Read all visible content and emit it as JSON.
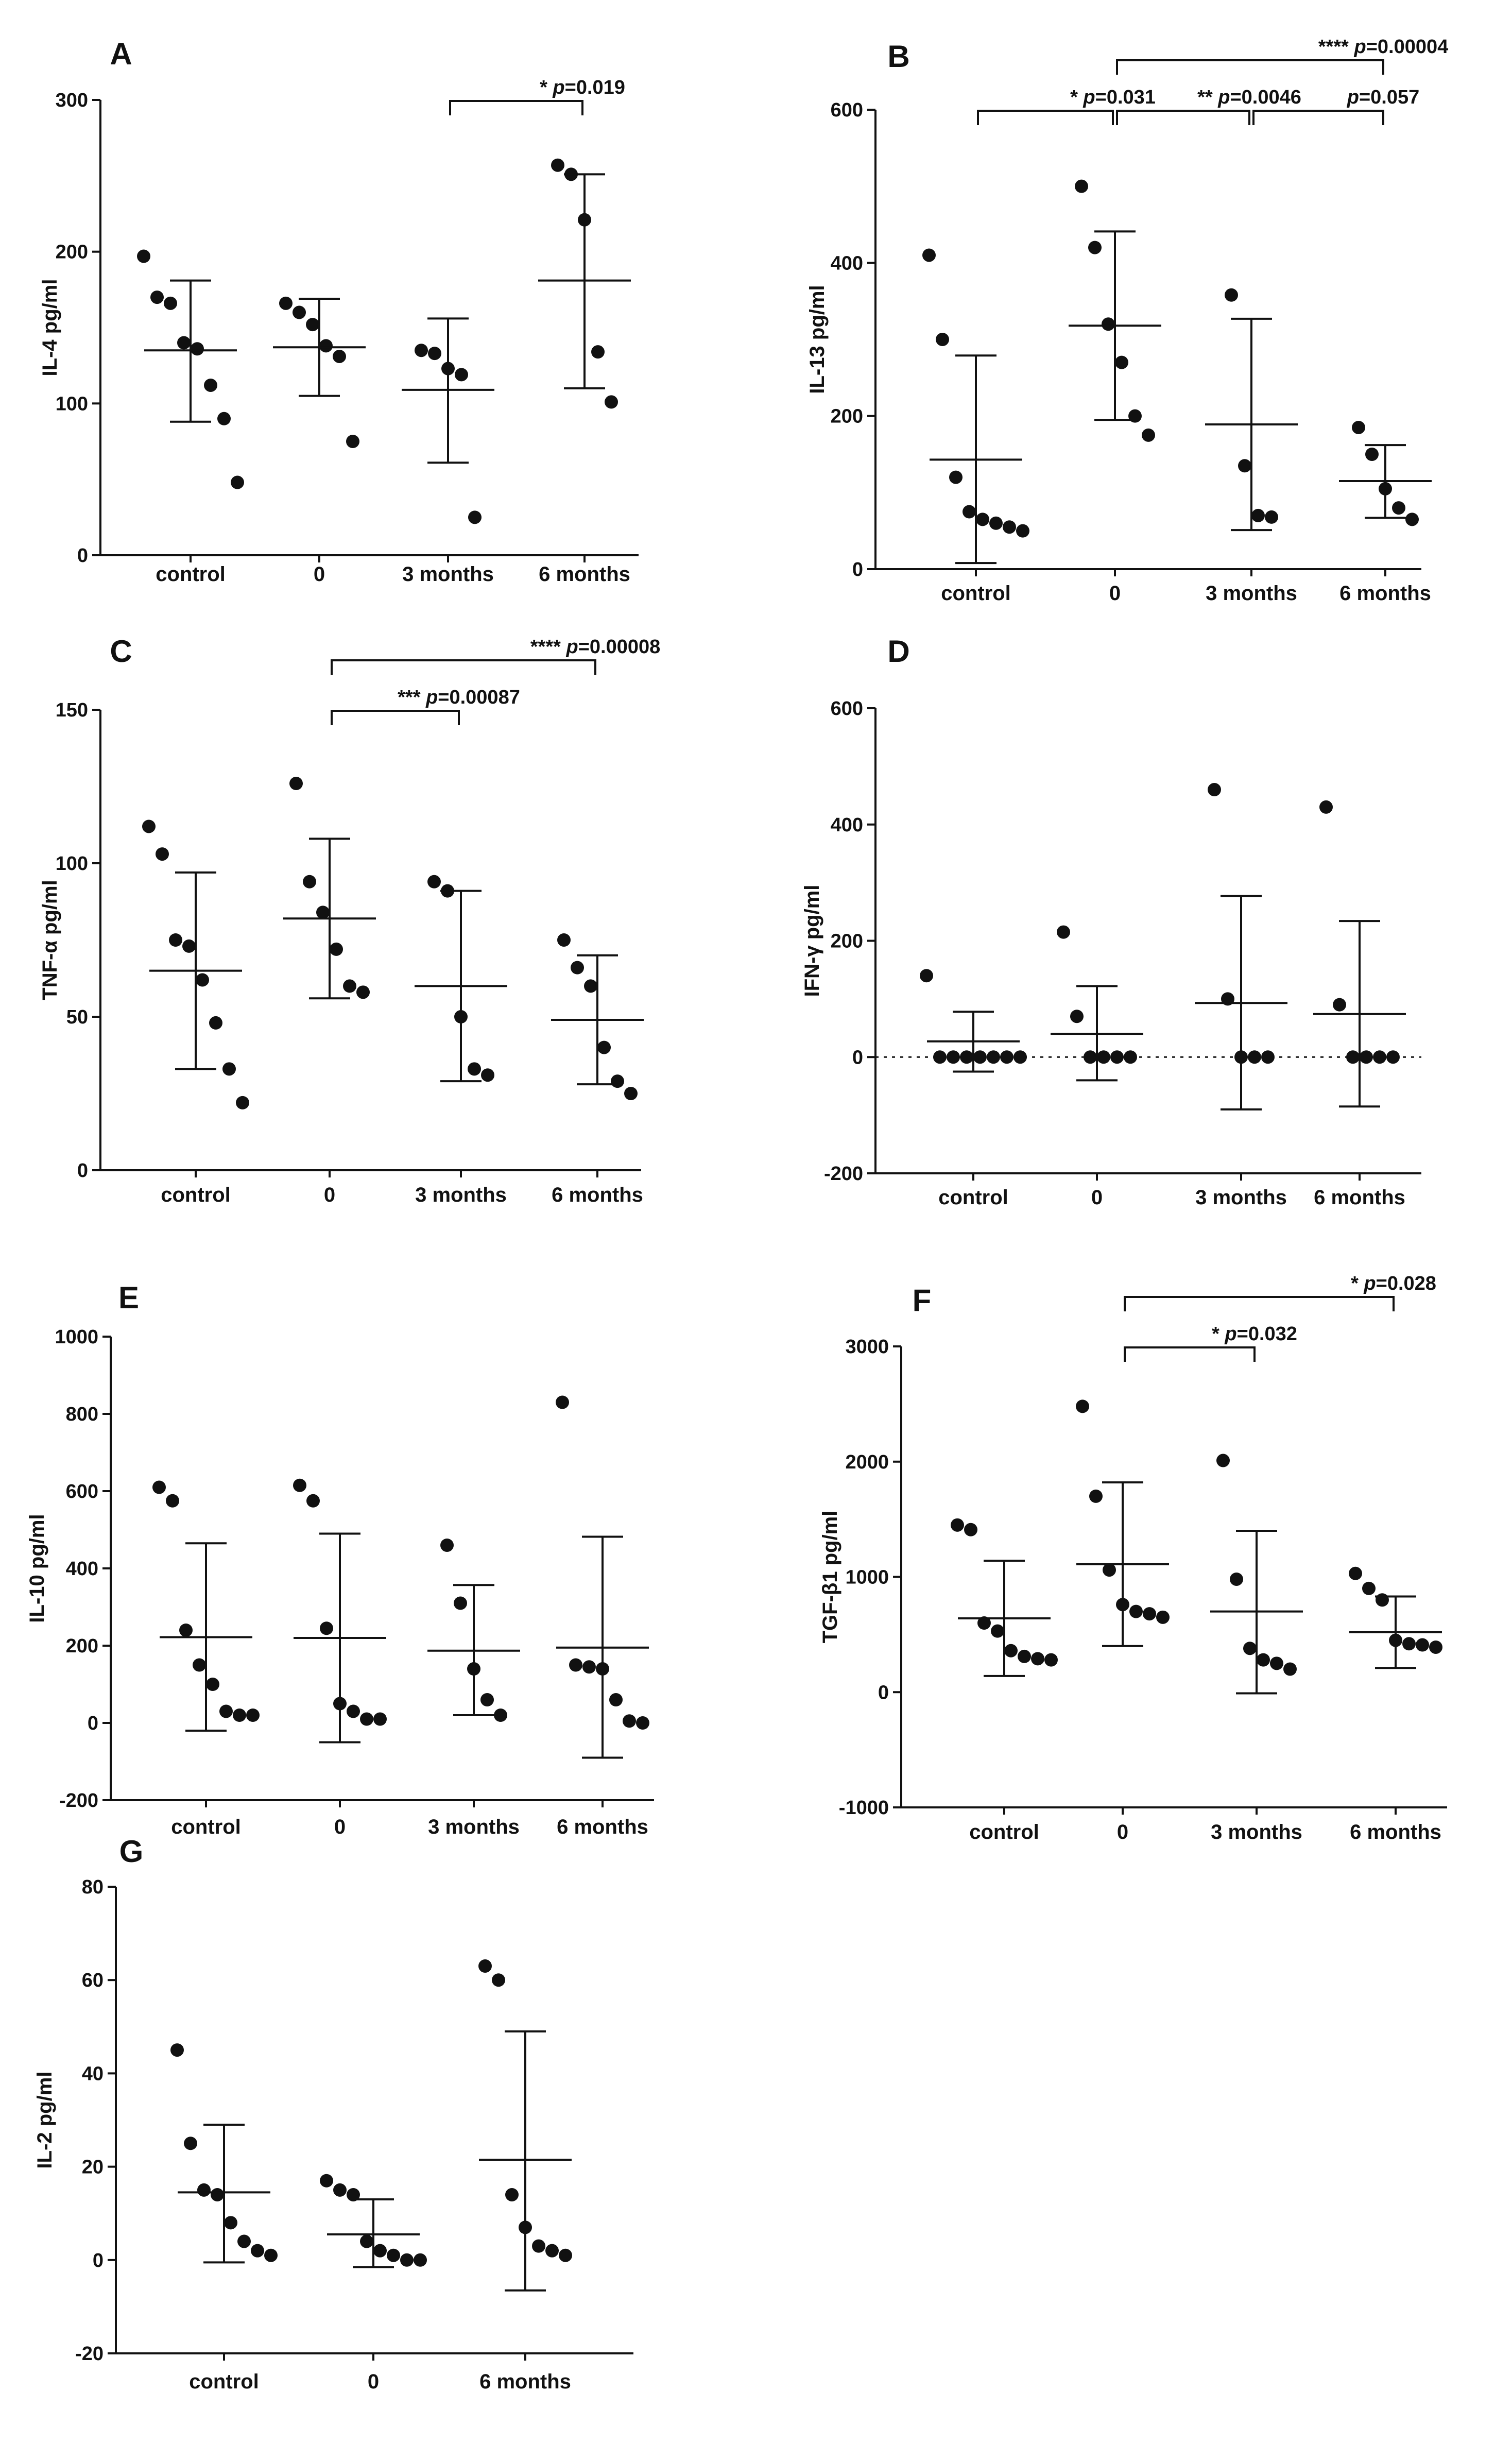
{
  "chart_data": [
    {
      "label": "A",
      "type": "scatter",
      "ylabel": "IL-4 pg/ml",
      "ylim": [
        0,
        300
      ],
      "yticks": [
        0,
        100,
        200,
        300
      ],
      "categories": [
        "control",
        "0",
        "3 months",
        "6 months"
      ],
      "points": [
        [
          197,
          170,
          166,
          140,
          136,
          112,
          90,
          48
        ],
        [
          166,
          160,
          152,
          138,
          131,
          75
        ],
        [
          135,
          133,
          123,
          119,
          25
        ],
        [
          257,
          251,
          221,
          134,
          101
        ]
      ],
      "mean": [
        135,
        137,
        109,
        181
      ],
      "sd_low": [
        88,
        105,
        61,
        110
      ],
      "sd_high": [
        181,
        169,
        156,
        251
      ],
      "zero_line": false,
      "comparisons": [
        {
          "from": 2,
          "to": 3,
          "level": 1,
          "stars": "*",
          "p": "=0.019"
        }
      ]
    },
    {
      "label": "B",
      "type": "scatter",
      "ylabel": "IL-13 pg/ml",
      "ylim": [
        0,
        600
      ],
      "yticks": [
        0,
        200,
        400,
        600
      ],
      "categories": [
        "control",
        "0",
        "3 months",
        "6 months"
      ],
      "points": [
        [
          410,
          300,
          120,
          75,
          65,
          60,
          55,
          50
        ],
        [
          500,
          420,
          320,
          270,
          200,
          175
        ],
        [
          358,
          135,
          70,
          68
        ],
        [
          185,
          150,
          105,
          80,
          65
        ]
      ],
      "mean": [
        143,
        318,
        189,
        115
      ],
      "sd_low": [
        8,
        195,
        51,
        67
      ],
      "sd_high": [
        279,
        441,
        327,
        162
      ],
      "zero_line": false,
      "comparisons": [
        {
          "from": 0,
          "to": 1,
          "level": 1,
          "stars": "*",
          "p": "=0.031"
        },
        {
          "from": 1,
          "to": 2,
          "level": 1,
          "stars": "**",
          "p": "=0.0046"
        },
        {
          "from": 2,
          "to": 3,
          "level": 1,
          "stars": "",
          "p": "=0.057"
        },
        {
          "from": 1,
          "to": 3,
          "level": 2,
          "stars": "****",
          "p": "=0.00004"
        }
      ]
    },
    {
      "label": "C",
      "type": "scatter",
      "ylabel": "TNF-α pg/ml",
      "ylim": [
        0,
        150
      ],
      "yticks": [
        0,
        50,
        100,
        150
      ],
      "categories": [
        "control",
        "0",
        "3 months",
        "6 months"
      ],
      "points": [
        [
          112,
          103,
          75,
          73,
          62,
          48,
          33,
          22
        ],
        [
          126,
          94,
          84,
          72,
          60,
          58
        ],
        [
          94,
          91,
          50,
          33,
          31
        ],
        [
          75,
          66,
          60,
          40,
          29,
          25
        ]
      ],
      "mean": [
        65,
        82,
        60,
        49
      ],
      "sd_low": [
        33,
        56,
        29,
        28
      ],
      "sd_high": [
        97,
        108,
        91,
        70
      ],
      "zero_line": false,
      "comparisons": [
        {
          "from": 1,
          "to": 2,
          "level": 1,
          "stars": "***",
          "p": "=0.00087"
        },
        {
          "from": 1,
          "to": 3,
          "level": 2,
          "stars": "****",
          "p": "=0.00008"
        }
      ]
    },
    {
      "label": "D",
      "type": "scatter",
      "ylabel": "IFN-γ pg/ml",
      "ylim": [
        -200,
        600
      ],
      "yticks": [
        -200,
        0,
        200,
        400,
        600
      ],
      "categories": [
        "control",
        "0",
        "3 months",
        "6 months"
      ],
      "points": [
        [
          140,
          0,
          0,
          0,
          0,
          0,
          0,
          0
        ],
        [
          215,
          70,
          0,
          0,
          0,
          0
        ],
        [
          460,
          100,
          0,
          0,
          0
        ],
        [
          430,
          90,
          0,
          0,
          0,
          0
        ]
      ],
      "mean": [
        27,
        40,
        93,
        74
      ],
      "sd_low": [
        -25,
        -40,
        -90,
        -85
      ],
      "sd_high": [
        78,
        122,
        277,
        234
      ],
      "zero_line": true,
      "comparisons": []
    },
    {
      "label": "E",
      "type": "scatter",
      "ylabel": "IL-10 pg/ml",
      "ylim": [
        -200,
        1000
      ],
      "yticks": [
        -200,
        0,
        200,
        400,
        600,
        800,
        1000
      ],
      "categories": [
        "control",
        "0",
        "3 months",
        "6 months"
      ],
      "points": [
        [
          610,
          575,
          240,
          150,
          100,
          30,
          20,
          20
        ],
        [
          615,
          575,
          245,
          50,
          30,
          10,
          10
        ],
        [
          460,
          310,
          140,
          60,
          20
        ],
        [
          830,
          150,
          145,
          140,
          60,
          5,
          0
        ]
      ],
      "mean": [
        222,
        220,
        187,
        195
      ],
      "sd_low": [
        -20,
        -50,
        20,
        -90
      ],
      "sd_high": [
        465,
        490,
        357,
        482
      ],
      "zero_line": false,
      "comparisons": []
    },
    {
      "label": "F",
      "type": "scatter",
      "ylabel": "TGF-β1 pg/ml",
      "ylim": [
        -1000,
        3000
      ],
      "yticks": [
        -1000,
        0,
        1000,
        2000,
        3000
      ],
      "categories": [
        "control",
        "0",
        "3 months",
        "6 months"
      ],
      "points": [
        [
          1450,
          1410,
          600,
          530,
          360,
          310,
          290,
          280
        ],
        [
          2480,
          1700,
          1060,
          760,
          700,
          680,
          650
        ],
        [
          2010,
          980,
          380,
          280,
          250,
          200
        ],
        [
          1030,
          900,
          800,
          450,
          420,
          410,
          390
        ]
      ],
      "mean": [
        640,
        1110,
        700,
        520
      ],
      "sd_low": [
        140,
        400,
        -10,
        210
      ],
      "sd_high": [
        1140,
        1820,
        1400,
        830
      ],
      "zero_line": false,
      "comparisons": [
        {
          "from": 1,
          "to": 2,
          "level": 1,
          "stars": "*",
          "p": "=0.032"
        },
        {
          "from": 1,
          "to": 3,
          "level": 2,
          "stars": "*",
          "p": "=0.028"
        }
      ]
    },
    {
      "label": "G",
      "type": "scatter",
      "ylabel": "IL-2 pg/ml",
      "ylim": [
        -20,
        80
      ],
      "yticks": [
        -20,
        0,
        20,
        40,
        60,
        80
      ],
      "categories": [
        "control",
        "0",
        "6 months"
      ],
      "points": [
        [
          45,
          25,
          15,
          14,
          8,
          4,
          2,
          1
        ],
        [
          17,
          15,
          14,
          4,
          2,
          1,
          0,
          0
        ],
        [
          63,
          60,
          14,
          7,
          3,
          2,
          1
        ]
      ],
      "mean": [
        14.5,
        5.5,
        21.5
      ],
      "sd_low": [
        -0.5,
        -1.5,
        -6.5
      ],
      "sd_high": [
        29,
        13,
        49
      ],
      "zero_line": false,
      "comparisons": []
    }
  ]
}
